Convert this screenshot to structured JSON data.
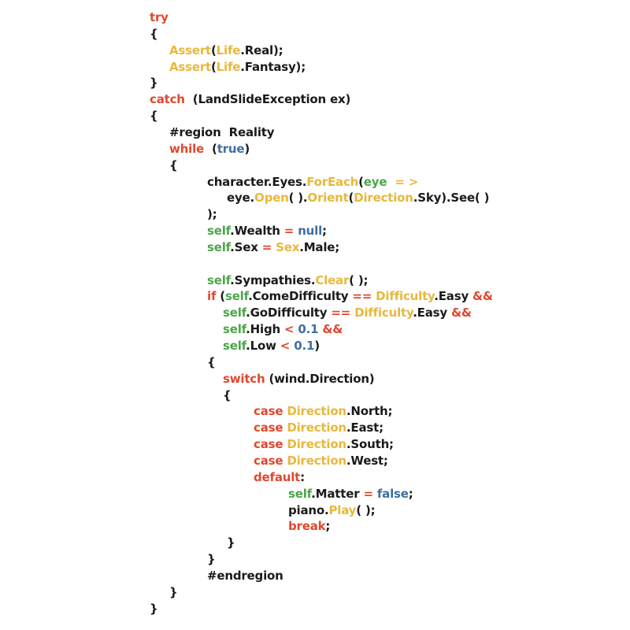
{
  "colors": {
    "k": "#1a1a1a",
    "r": "#e0482e",
    "y": "#e8b83c",
    "g": "#4da64a",
    "b": "#3e6fa0"
  },
  "code_lines": [
    [
      [
        "try",
        "r"
      ]
    ],
    [
      [
        "{",
        "k"
      ]
    ],
    [
      [
        "Assert",
        "y"
      ],
      [
        "(",
        "k"
      ],
      [
        "Life",
        "y"
      ],
      [
        ".Real);",
        "k"
      ]
    ],
    [
      [
        "Assert",
        "y"
      ],
      [
        "(",
        "k"
      ],
      [
        "Life",
        "y"
      ],
      [
        ".Fantasy);",
        "k"
      ]
    ],
    [
      [
        "}",
        "k"
      ]
    ],
    [
      [
        "catch",
        "r"
      ],
      [
        "  (LandSlideException ex)",
        "k"
      ]
    ],
    [
      [
        "{",
        "k"
      ]
    ],
    [
      [
        "#region  Reality",
        "k"
      ]
    ],
    [
      [
        "while",
        "r"
      ],
      [
        "  (",
        "k"
      ],
      [
        "true",
        "b"
      ],
      [
        ")",
        "k"
      ]
    ],
    [
      [
        "{",
        "k"
      ]
    ],
    [
      [
        "character.Eyes.",
        "k"
      ],
      [
        "ForEach",
        "y"
      ],
      [
        "(",
        "k"
      ],
      [
        "eye",
        "g"
      ],
      [
        "  = >",
        "y"
      ]
    ],
    [
      [
        "eye.",
        "k"
      ],
      [
        "Open",
        "y"
      ],
      [
        "( ).",
        "k"
      ],
      [
        "Orient",
        "y"
      ],
      [
        "(",
        "k"
      ],
      [
        "Direction",
        "y"
      ],
      [
        ".Sky).See( )",
        "k"
      ]
    ],
    [
      [
        ");",
        "k"
      ]
    ],
    [
      [
        "self",
        "g"
      ],
      [
        ".Wealth",
        "k"
      ],
      [
        " = ",
        "r"
      ],
      [
        "null",
        "b"
      ],
      [
        ";",
        "k"
      ]
    ],
    [
      [
        "self",
        "g"
      ],
      [
        ".Sex",
        "k"
      ],
      [
        " = ",
        "r"
      ],
      [
        "Sex",
        "y"
      ],
      [
        ".Male;",
        "k"
      ]
    ],
    [],
    [
      [
        "self",
        "g"
      ],
      [
        ".Sympathies.",
        "k"
      ],
      [
        "Clear",
        "y"
      ],
      [
        "( );",
        "k"
      ]
    ],
    [
      [
        "if",
        "r"
      ],
      [
        " (",
        "k"
      ],
      [
        "self",
        "g"
      ],
      [
        ".ComeDifficulty",
        "k"
      ],
      [
        " == ",
        "r"
      ],
      [
        "Difficulty",
        "y"
      ],
      [
        ".Easy",
        "k"
      ],
      [
        " &&",
        "r"
      ]
    ],
    [
      [
        "self",
        "g"
      ],
      [
        ".GoDifficulty",
        "k"
      ],
      [
        " == ",
        "r"
      ],
      [
        "Difficulty",
        "y"
      ],
      [
        ".Easy",
        "k"
      ],
      [
        " &&",
        "r"
      ]
    ],
    [
      [
        "self",
        "g"
      ],
      [
        ".High",
        "k"
      ],
      [
        " < ",
        "r"
      ],
      [
        "0.1",
        "b"
      ],
      [
        " &&",
        "r"
      ]
    ],
    [
      [
        "self",
        "g"
      ],
      [
        ".Low",
        "k"
      ],
      [
        " < ",
        "r"
      ],
      [
        "0.1",
        "b"
      ],
      [
        ")",
        "k"
      ]
    ],
    [
      [
        "{",
        "k"
      ]
    ],
    [
      [
        "switch",
        "r"
      ],
      [
        " (wind.Direction)",
        "k"
      ]
    ],
    [
      [
        "{",
        "k"
      ]
    ],
    [
      [
        "case",
        "r"
      ],
      [
        " ",
        "k"
      ],
      [
        "Direction",
        "y"
      ],
      [
        ".North;",
        "k"
      ]
    ],
    [
      [
        "case",
        "r"
      ],
      [
        " ",
        "k"
      ],
      [
        "Direction",
        "y"
      ],
      [
        ".East;",
        "k"
      ]
    ],
    [
      [
        "case",
        "r"
      ],
      [
        " ",
        "k"
      ],
      [
        "Direction",
        "y"
      ],
      [
        ".South;",
        "k"
      ]
    ],
    [
      [
        "case",
        "r"
      ],
      [
        " ",
        "k"
      ],
      [
        "Direction",
        "y"
      ],
      [
        ".West;",
        "k"
      ]
    ],
    [
      [
        "default",
        "r"
      ],
      [
        ":",
        "k"
      ]
    ],
    [
      [
        "self",
        "g"
      ],
      [
        ".Matter",
        "k"
      ],
      [
        " = ",
        "r"
      ],
      [
        "false",
        "b"
      ],
      [
        ";",
        "k"
      ]
    ],
    [
      [
        "piano.",
        "k"
      ],
      [
        "Play",
        "y"
      ],
      [
        "( );",
        "k"
      ]
    ],
    [
      [
        "break",
        "r"
      ],
      [
        ";",
        "k"
      ]
    ],
    [
      [
        "}",
        "k"
      ]
    ],
    [
      [
        "}",
        "k"
      ]
    ],
    [
      [
        "#endregion",
        "k"
      ]
    ],
    [
      [
        "}",
        "k"
      ]
    ],
    [
      [
        "}",
        "k"
      ]
    ]
  ]
}
